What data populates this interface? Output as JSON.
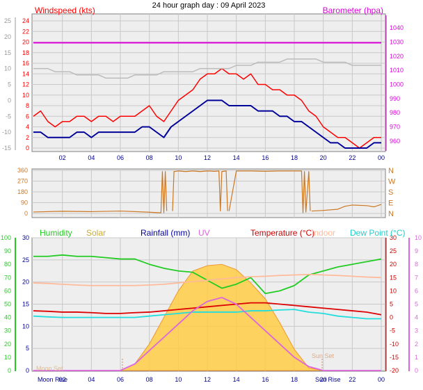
{
  "title": "24 hour graph day : 09 April 2023",
  "time_ticks": [
    "02",
    "04",
    "06",
    "08",
    "10",
    "12",
    "14",
    "16",
    "18",
    "20",
    "22",
    "00"
  ],
  "colors": {
    "wind": "#ff0000",
    "gust": "#ff0000",
    "temperature": "#dd0000",
    "dewpoint": "#22dddd",
    "indoor": "#ffbb99",
    "humidity": "#22cc22",
    "solar": "#ffcc44",
    "rainfall": "#000099",
    "uv": "#dd66dd",
    "barometer": "#dd00dd",
    "direction": "#cc7722",
    "baro_line": "#bbbbbb",
    "text_navy": "#000088"
  },
  "chart_data": [
    {
      "type": "line",
      "panel": "wind",
      "left_axis_title": "Windspeed (kts)",
      "right_axis_title": "Barometer (hpa)",
      "left_ticks": [
        24,
        22,
        20,
        18,
        16,
        14,
        12,
        10,
        8,
        6,
        4,
        2,
        0
      ],
      "outer_left_ticks": [
        25,
        20,
        15,
        10,
        5,
        0,
        -5,
        -10,
        -15
      ],
      "right_ticks": [
        1040,
        1030,
        1020,
        1010,
        1000,
        990,
        980,
        970,
        960
      ],
      "right_ticks_minor": [
        1035,
        1025,
        1015,
        1005,
        995,
        985,
        975,
        965
      ],
      "x_hours": [
        0.0,
        0.5,
        1.0,
        1.5,
        2.0,
        2.5,
        3.0,
        3.5,
        4.0,
        4.5,
        5.0,
        5.5,
        6.0,
        6.5,
        7.0,
        7.5,
        8.0,
        8.5,
        9.0,
        9.5,
        10.0,
        10.5,
        11.0,
        11.5,
        12.0,
        12.5,
        13.0,
        13.5,
        14.0,
        14.5,
        15.0,
        15.5,
        16.0,
        16.5,
        17.0,
        17.5,
        18.0,
        18.5,
        19.0,
        19.5,
        20.0,
        20.5,
        21.0,
        21.5,
        22.0,
        22.5,
        23.0,
        23.5,
        24.0
      ],
      "series": [
        {
          "key": "gust",
          "values": [
            6,
            7,
            5,
            4,
            5,
            5,
            6,
            6,
            5,
            6,
            6,
            5,
            6,
            6,
            6,
            7,
            8,
            6,
            5,
            7,
            9,
            10,
            11,
            13,
            14,
            14,
            15,
            14,
            14,
            13,
            14,
            12,
            12,
            11,
            11,
            10,
            10,
            9,
            7,
            6,
            4,
            3,
            2,
            2,
            1,
            0,
            1,
            2,
            2
          ]
        },
        {
          "key": "wind",
          "values": [
            3,
            3,
            2,
            2,
            2,
            2,
            3,
            3,
            2,
            3,
            3,
            3,
            3,
            3,
            3,
            4,
            4,
            3,
            2,
            4,
            5,
            6,
            7,
            8,
            9,
            9,
            9,
            8,
            8,
            8,
            8,
            7,
            7,
            7,
            6,
            6,
            5,
            5,
            4,
            3,
            2,
            1,
            1,
            0,
            0,
            0,
            0,
            1,
            1
          ]
        },
        {
          "key": "baro_line",
          "values": [
            10,
            10,
            10,
            9,
            9,
            9,
            8,
            8,
            8,
            8,
            7,
            7,
            7,
            7,
            8,
            8,
            8,
            8,
            9,
            9,
            9,
            9,
            9,
            10,
            10,
            10,
            10,
            10,
            11,
            11,
            11,
            12,
            12,
            12,
            12,
            13,
            13,
            13,
            13,
            13,
            12,
            12,
            12,
            12,
            11,
            11,
            11,
            11,
            11
          ]
        },
        {
          "key": "barometer",
          "values": [
            1029.5,
            1029.5,
            1029.5,
            1029.5,
            1029.5,
            1029.5,
            1029.5,
            1029.5,
            1029.5,
            1029.5,
            1029.5,
            1029.5,
            1029.5,
            1029.5,
            1029.5,
            1029.5,
            1029.5,
            1029.5,
            1029.5,
            1029.5,
            1029.5,
            1029.5,
            1029.5,
            1029.5,
            1029.5,
            1029.5,
            1029.5,
            1029.5,
            1029.5,
            1029.5,
            1029.5,
            1029.5,
            1029.5,
            1029.5,
            1029.5,
            1029.5,
            1029.5,
            1029.5,
            1029.5,
            1029.5,
            1029.5,
            1029.5,
            1029.5,
            1029.5,
            1029.5,
            1029.5,
            1029.5,
            1029.5,
            1029.5
          ]
        }
      ]
    },
    {
      "type": "line",
      "panel": "direction",
      "left_ticks": [
        360,
        270,
        180,
        90,
        0
      ],
      "right_ticks": [
        "N",
        "W",
        "S",
        "E",
        "N"
      ],
      "segments": [
        {
          "x": [
            0,
            2,
            4,
            6,
            8,
            8.8,
            8.9,
            9.0,
            9.1,
            9.2
          ],
          "y": [
            12,
            18,
            15,
            20,
            10,
            5,
            350,
            5,
            350,
            20
          ]
        },
        {
          "x": [
            9.6,
            9.7,
            10.0,
            10.5,
            11.0,
            11.5,
            12.0,
            12.5,
            12.8,
            12.9,
            13.0,
            13.3,
            13.4
          ],
          "y": [
            20,
            350,
            355,
            350,
            355,
            350,
            355,
            352,
            355,
            20,
            350,
            355,
            20
          ]
        },
        {
          "x": [
            13.5,
            14.0,
            15.0,
            16.0,
            17.0,
            18.0,
            18.5,
            18.6,
            18.7,
            18.8,
            19.0,
            19.1
          ],
          "y": [
            20,
            355,
            355,
            352,
            355,
            355,
            355,
            5,
            350,
            10,
            350,
            20
          ]
        },
        {
          "x": [
            19.2,
            20.0,
            21.0,
            21.5,
            22.0,
            23.0,
            23.5,
            24.0
          ],
          "y": [
            20,
            25,
            35,
            60,
            70,
            65,
            55,
            75
          ]
        }
      ]
    },
    {
      "type": "line",
      "panel": "climate",
      "legend": [
        "Humidity",
        "Solar",
        "Rainfall (mm)",
        "UV",
        "Temperature (°C)",
        "Indoor",
        "Dew Point (°C)"
      ],
      "left_ticks_humidity": [
        100,
        90,
        80,
        70,
        60,
        50,
        40,
        30,
        20,
        10,
        0
      ],
      "left_ticks_rain": [
        30,
        25,
        20,
        15,
        10,
        5,
        0
      ],
      "right_ticks_temp": [
        30,
        25,
        20,
        15,
        10,
        5,
        0,
        -5,
        -10,
        -15,
        -20
      ],
      "right_ticks_uv": [
        10,
        9,
        8,
        7,
        6,
        5,
        4,
        3,
        2,
        1,
        0
      ],
      "moon_rise_label": "Moon Rise",
      "moon_set_label": "Moon Set",
      "sun_rise_label": "Sun Rise",
      "sun_set_label": "Sun Set",
      "x_hours": [
        0,
        1,
        2,
        3,
        4,
        5,
        6,
        7,
        8,
        9,
        10,
        11,
        12,
        13,
        14,
        15,
        16,
        17,
        18,
        19,
        20,
        21,
        22,
        23,
        24
      ],
      "series": [
        {
          "key": "humidity",
          "values": [
            86,
            86,
            87,
            86,
            86,
            85,
            84,
            84,
            80,
            77,
            75,
            74,
            68,
            62,
            65,
            70,
            58,
            60,
            64,
            72,
            75,
            78,
            80,
            82,
            84
          ]
        },
        {
          "key": "indoor",
          "values": [
            13,
            12.8,
            12.5,
            12.2,
            12,
            12,
            12,
            12,
            12.2,
            12.5,
            13,
            13.5,
            14,
            14.5,
            15,
            15.3,
            15.5,
            15.8,
            16,
            16.2,
            16,
            15.8,
            15.5,
            15.2,
            15
          ]
        },
        {
          "key": "temperature",
          "values": [
            2.5,
            2.3,
            2.0,
            2.0,
            1.8,
            1.5,
            1.5,
            1.8,
            2.0,
            2.5,
            3.0,
            3.5,
            4.0,
            4.5,
            5.0,
            5.5,
            5.5,
            5.0,
            4.5,
            4.0,
            3.5,
            3.0,
            2.5,
            2.0,
            1.0
          ]
        },
        {
          "key": "dewpoint",
          "values": [
            0.5,
            0.2,
            0.0,
            0.0,
            0.0,
            0.0,
            0.0,
            0.0,
            0.5,
            1.0,
            1.5,
            2.0,
            2.0,
            2.0,
            2.0,
            2.5,
            2.5,
            2.8,
            3.0,
            2.0,
            1.5,
            0.5,
            0.0,
            -0.5,
            -0.5
          ]
        },
        {
          "key": "uv",
          "values": [
            0,
            0,
            0,
            0,
            0,
            0,
            0,
            0.5,
            1.5,
            2.5,
            3.5,
            4.5,
            5.2,
            5.5,
            5.0,
            4.0,
            3.0,
            2.0,
            1.0,
            0.3,
            0,
            0,
            0,
            0,
            0
          ]
        },
        {
          "key": "solar",
          "values": [
            0,
            0,
            0,
            0,
            0,
            0,
            0,
            0.5,
            2.0,
            4.0,
            6.0,
            7.5,
            7.9,
            8.0,
            7.6,
            6.6,
            5.4,
            3.6,
            1.6,
            0.2,
            0,
            0,
            0,
            0,
            0
          ]
        }
      ]
    }
  ]
}
